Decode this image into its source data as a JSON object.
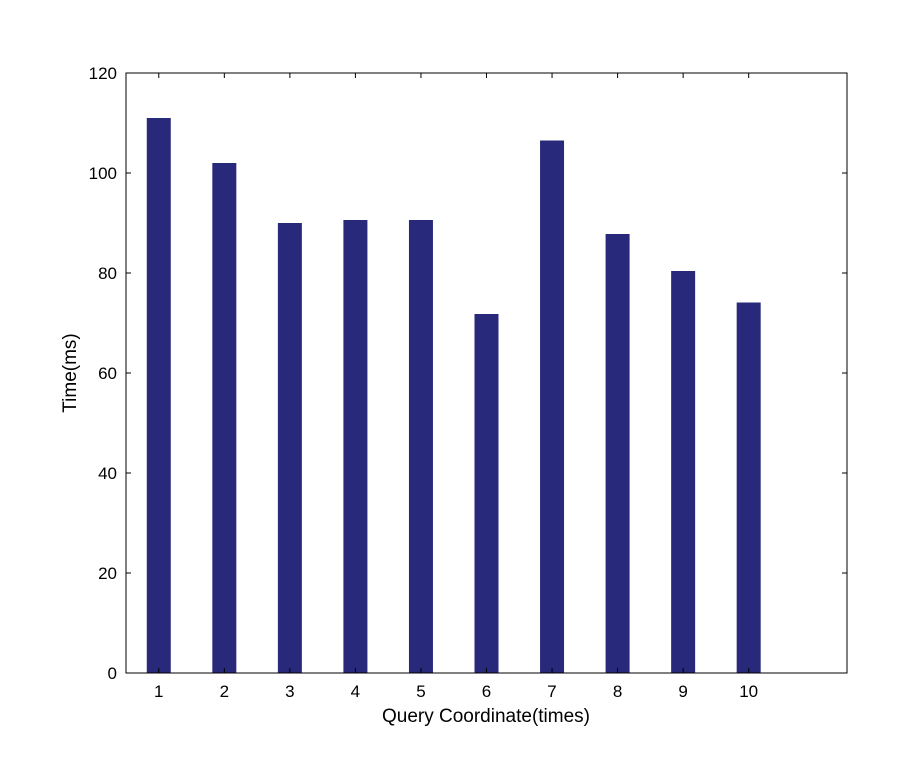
{
  "chart_data": {
    "type": "bar",
    "title": "",
    "xlabel": "Query Coordinate(times)",
    "ylabel": "Time(ms)",
    "categories": [
      "1",
      "2",
      "3",
      "4",
      "5",
      "6",
      "7",
      "8",
      "9",
      "10"
    ],
    "values": [
      111,
      102,
      90,
      90.6,
      90.6,
      71.8,
      106.5,
      87.8,
      80.4,
      74.1
    ],
    "ylim": [
      0,
      120
    ],
    "xlim": [
      0.5,
      11.5
    ],
    "yticks": [
      0,
      20,
      40,
      60,
      80,
      100,
      120
    ],
    "grid": false,
    "legend": "none",
    "bar_color": "#28297a"
  }
}
